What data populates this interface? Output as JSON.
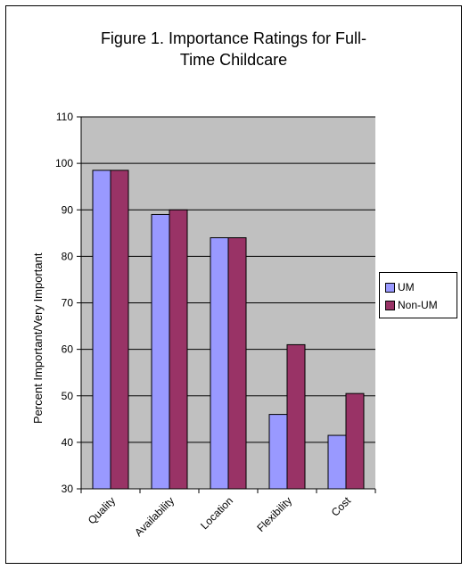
{
  "chart_data": {
    "type": "bar",
    "title_lines": [
      "Figure 1.  Importance Ratings for Full-",
      "Time Childcare"
    ],
    "xlabel": "",
    "ylabel": "Percent Important/Very Important",
    "categories": [
      "Quality",
      "Availability",
      "Location",
      "Flexibility",
      "Cost"
    ],
    "series": [
      {
        "name": "UM",
        "values": [
          98.5,
          89,
          84,
          46,
          41.5
        ],
        "color": "#9999ff"
      },
      {
        "name": "Non-UM",
        "values": [
          98.5,
          90,
          84,
          61,
          50.5
        ],
        "color": "#993366"
      }
    ],
    "ylim": [
      30,
      110
    ],
    "yticks": [
      30,
      40,
      50,
      60,
      70,
      80,
      90,
      100,
      110
    ],
    "grid": true,
    "plot_background": "#c0c0c0",
    "legend": "right"
  }
}
